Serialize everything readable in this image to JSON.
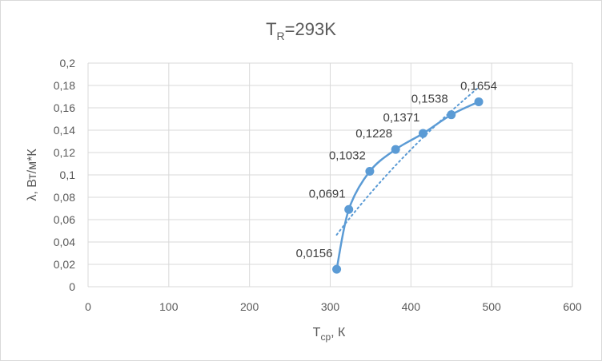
{
  "chart_data": {
    "type": "scatter",
    "title": {
      "main": "T",
      "sub": "R",
      "rest": "=293K"
    },
    "xlabel": {
      "main": "T",
      "sub": "ср",
      "rest": ", К"
    },
    "ylabel": "λ, Вт/м*К",
    "xlim": [
      0,
      600
    ],
    "ylim": [
      0,
      0.2
    ],
    "x_ticks": [
      0,
      100,
      200,
      300,
      400,
      500,
      600
    ],
    "y_ticks": [
      0,
      0.02,
      0.04,
      0.06,
      0.08,
      0.1,
      0.12,
      0.14,
      0.16,
      0.18,
      0.2
    ],
    "x_tick_labels": [
      "0",
      "100",
      "200",
      "300",
      "400",
      "500",
      "600"
    ],
    "y_tick_labels": [
      "0",
      "0,02",
      "0,04",
      "0,06",
      "0,08",
      "0,1",
      "0,12",
      "0,14",
      "0,16",
      "0,18",
      "0,2"
    ],
    "grid": true,
    "legend": "none",
    "series": [
      {
        "color": "#5b9bd5",
        "style": "smooth-line-with-markers",
        "x": [
          308,
          323,
          349,
          381,
          415,
          450,
          484
        ],
        "y": [
          0.0156,
          0.0691,
          0.1032,
          0.1228,
          0.1371,
          0.1538,
          0.1654
        ],
        "labels": [
          "0,0156",
          "0,0691",
          "0,1032",
          "0,1228",
          "0,1371",
          "0,1538",
          "0,1654"
        ]
      }
    ],
    "trendline": {
      "type": "logarithmic",
      "style": "dotted",
      "color": "#5b9bd5"
    }
  }
}
